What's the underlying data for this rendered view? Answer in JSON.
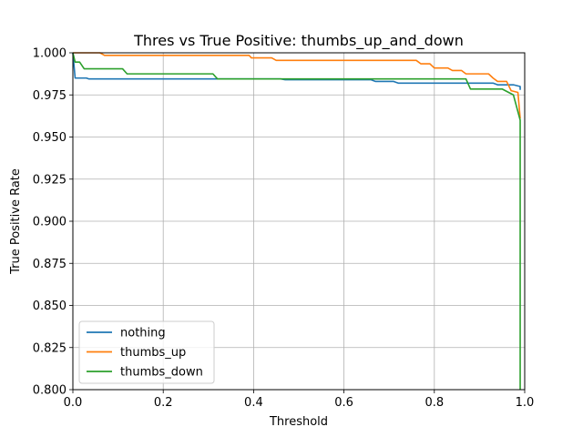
{
  "chart_data": {
    "type": "line",
    "title": "Thres vs True Positive: thumbs_up_and_down",
    "xlabel": "Threshold",
    "ylabel": "True Positive Rate",
    "xlim": [
      0.0,
      1.0
    ],
    "ylim": [
      0.8,
      1.0
    ],
    "xticks": [
      "0.0",
      "0.2",
      "0.4",
      "0.6",
      "0.8",
      "1.0"
    ],
    "yticks": [
      "0.800",
      "0.825",
      "0.850",
      "0.875",
      "0.900",
      "0.925",
      "0.950",
      "0.975",
      "1.000"
    ],
    "grid": true,
    "legend_position": "lower-left",
    "series": [
      {
        "name": "nothing",
        "color": "#1f77b4",
        "points": [
          [
            0.0,
            1.0
          ],
          [
            0.005,
            0.985
          ],
          [
            0.03,
            0.985
          ],
          [
            0.035,
            0.9845
          ],
          [
            0.2,
            0.9845
          ],
          [
            0.4,
            0.9845
          ],
          [
            0.46,
            0.9845
          ],
          [
            0.47,
            0.984
          ],
          [
            0.66,
            0.984
          ],
          [
            0.67,
            0.983
          ],
          [
            0.71,
            0.983
          ],
          [
            0.72,
            0.982
          ],
          [
            0.9,
            0.982
          ],
          [
            0.93,
            0.982
          ],
          [
            0.94,
            0.981
          ],
          [
            0.975,
            0.981
          ],
          [
            0.99,
            0.98
          ],
          [
            0.99,
            0.978
          ]
        ]
      },
      {
        "name": "thumbs_up",
        "color": "#ff7f0e",
        "points": [
          [
            0.0,
            1.0
          ],
          [
            0.06,
            1.0
          ],
          [
            0.07,
            0.9985
          ],
          [
            0.2,
            0.9985
          ],
          [
            0.39,
            0.9985
          ],
          [
            0.395,
            0.997
          ],
          [
            0.44,
            0.997
          ],
          [
            0.45,
            0.9955
          ],
          [
            0.7,
            0.9955
          ],
          [
            0.76,
            0.9955
          ],
          [
            0.77,
            0.9935
          ],
          [
            0.79,
            0.9935
          ],
          [
            0.8,
            0.991
          ],
          [
            0.83,
            0.991
          ],
          [
            0.84,
            0.9895
          ],
          [
            0.86,
            0.9895
          ],
          [
            0.87,
            0.9875
          ],
          [
            0.92,
            0.9875
          ],
          [
            0.93,
            0.985
          ],
          [
            0.94,
            0.983
          ],
          [
            0.96,
            0.983
          ],
          [
            0.97,
            0.9775
          ],
          [
            0.985,
            0.9765
          ],
          [
            0.99,
            0.961
          ]
        ]
      },
      {
        "name": "thumbs_down",
        "color": "#2ca02c",
        "points": [
          [
            0.0,
            1.0
          ],
          [
            0.005,
            0.9945
          ],
          [
            0.015,
            0.9945
          ],
          [
            0.025,
            0.9905
          ],
          [
            0.11,
            0.9905
          ],
          [
            0.12,
            0.9875
          ],
          [
            0.31,
            0.9875
          ],
          [
            0.32,
            0.9845
          ],
          [
            0.6,
            0.9845
          ],
          [
            0.87,
            0.9845
          ],
          [
            0.88,
            0.9785
          ],
          [
            0.95,
            0.9785
          ],
          [
            0.975,
            0.975
          ],
          [
            0.99,
            0.96
          ],
          [
            0.99,
            0.8
          ]
        ]
      }
    ]
  }
}
